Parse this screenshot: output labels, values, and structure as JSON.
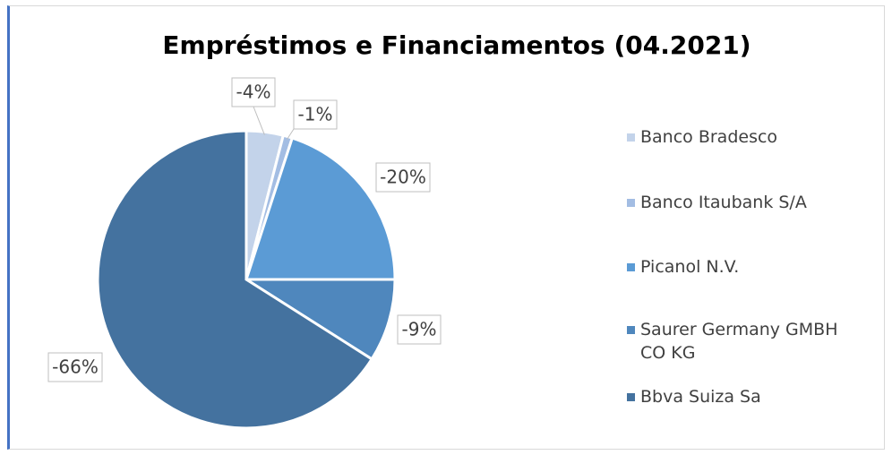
{
  "chart_data": {
    "type": "pie",
    "title": "Empréstimos e Financiamentos (04.2021)",
    "categories": [
      "Banco Bradesco",
      "Banco Itaubank S/A",
      "Picanol N.V.",
      "Saurer Germany GMBH CO KG",
      "Bbva Suiza Sa"
    ],
    "values": [
      -4,
      -1,
      -20,
      -9,
      -66
    ],
    "value_labels": [
      "-4%",
      "-1%",
      "-20%",
      "-9%",
      "-66%"
    ],
    "colors": [
      "#c3d3ea",
      "#a3bde3",
      "#5b9bd5",
      "#4f87bd",
      "#44729f"
    ]
  }
}
